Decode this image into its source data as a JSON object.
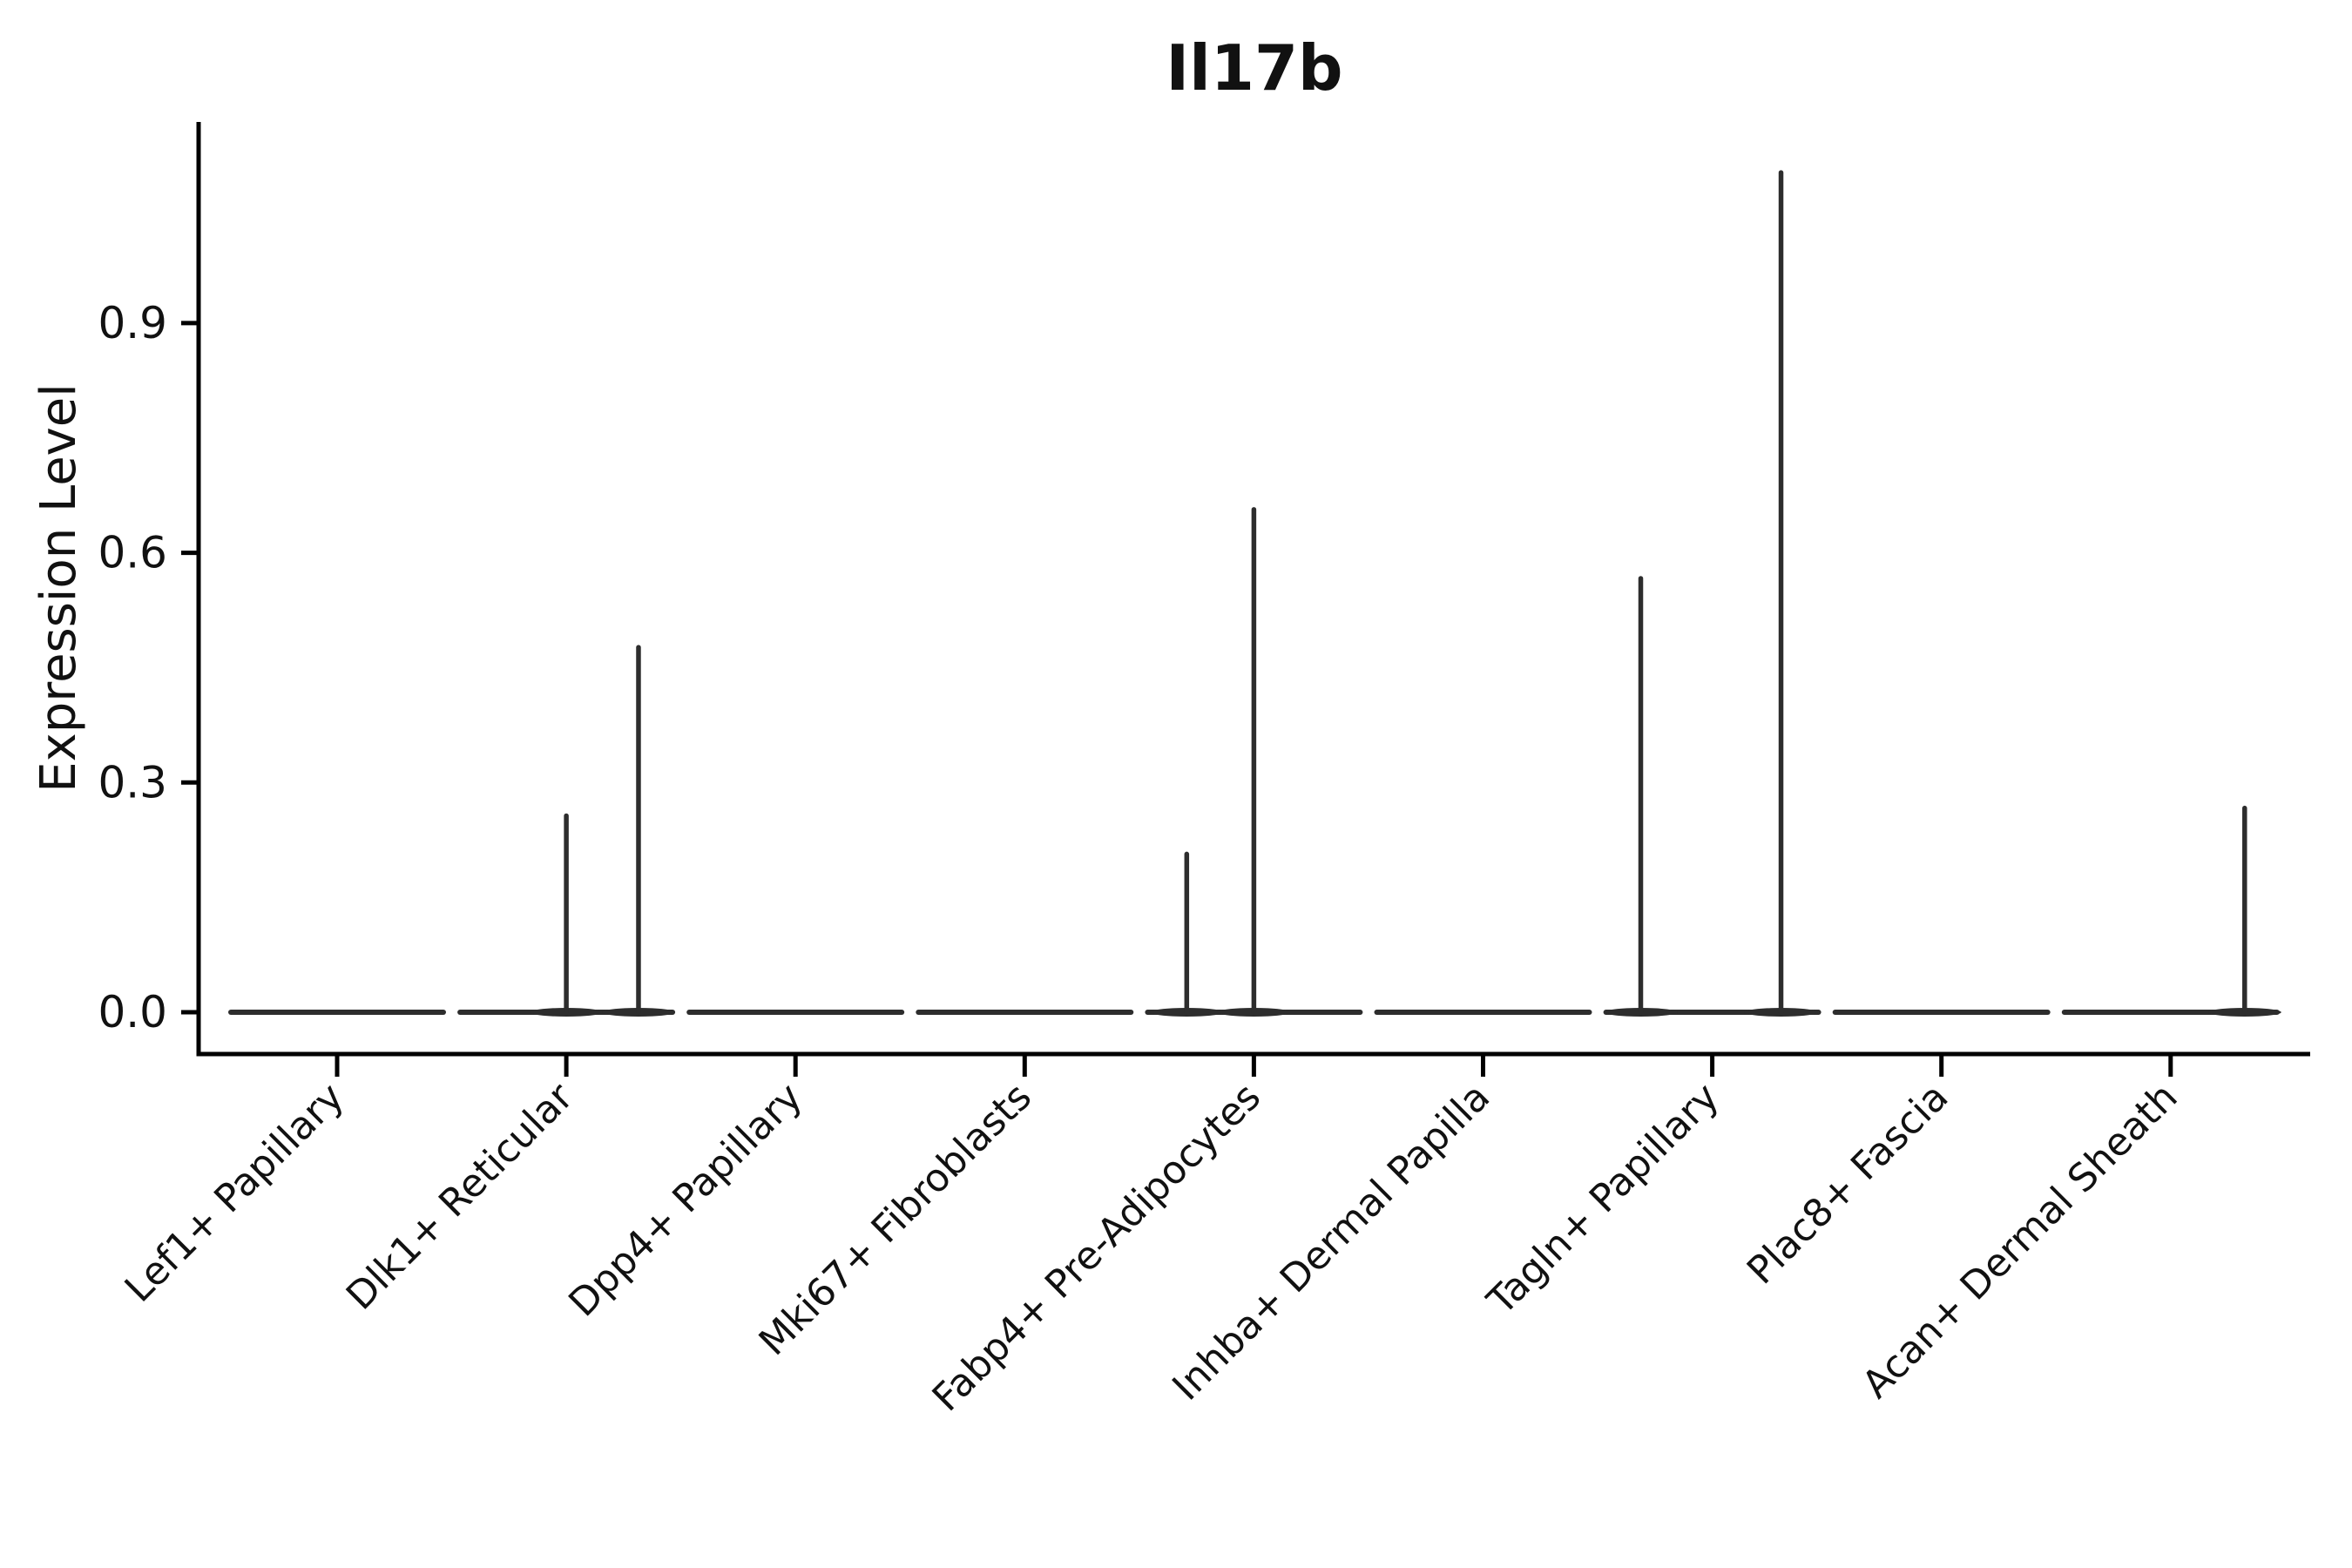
{
  "figure": {
    "title": "Il17b",
    "ylabel": "Expression Level"
  },
  "chart_data": {
    "type": "violin",
    "title": "Il17b",
    "xlabel": "",
    "ylabel": "Expression Level",
    "categories": [
      "Lef1+ Papillary",
      "Dlk1+ Reticular",
      "Dpp4+ Papillary",
      "Mki67+ Fibroblasts",
      "Fabp4+ Pre-Adipocytes",
      "Inhba+ Dermal Papilla",
      "Tagln+ Papillary",
      "Plac8+ Fascia",
      "Acan+ Dermal Sheath"
    ],
    "yticks": [
      0.0,
      0.3,
      0.6,
      0.9
    ],
    "ytick_labels": [
      "0.0",
      "0.3",
      "0.6",
      "0.9"
    ],
    "ylim": [
      -0.055,
      1.16
    ],
    "x_tick_rotation_deg": 45,
    "grid": false,
    "legend_position": "none",
    "colors": {
      "spine": "#000000",
      "violin_line": "#2d2d2d",
      "text": "#111111"
    },
    "violins": [
      {
        "category": "Lef1+ Papillary",
        "max_expression": 0.0,
        "spikes": []
      },
      {
        "category": "Dlk1+ Reticular",
        "max_expression": 0.48,
        "spikes": [
          {
            "offset_frac": 0.0,
            "value": 0.26
          },
          {
            "offset_frac": 0.315,
            "value": 0.48
          }
        ]
      },
      {
        "category": "Dpp4+ Papillary",
        "max_expression": 0.0,
        "spikes": []
      },
      {
        "category": "Mki67+ Fibroblasts",
        "max_expression": 0.0,
        "spikes": []
      },
      {
        "category": "Fabp4+ Pre-Adipocytes",
        "max_expression": 0.66,
        "spikes": [
          {
            "offset_frac": -0.293,
            "value": 0.21
          },
          {
            "offset_frac": 0.0,
            "value": 0.66
          }
        ]
      },
      {
        "category": "Inhba+ Dermal Papilla",
        "max_expression": 0.0,
        "spikes": []
      },
      {
        "category": "Tagln+ Papillary",
        "max_expression": 1.1,
        "spikes": [
          {
            "offset_frac": -0.312,
            "value": 0.57
          },
          {
            "offset_frac": 0.3,
            "value": 1.1
          }
        ]
      },
      {
        "category": "Plac8+ Fascia",
        "max_expression": 0.0,
        "spikes": []
      },
      {
        "category": "Acan+ Dermal Sheath",
        "max_expression": 0.27,
        "spikes": [
          {
            "offset_frac": 0.323,
            "value": 0.27
          }
        ]
      }
    ]
  }
}
